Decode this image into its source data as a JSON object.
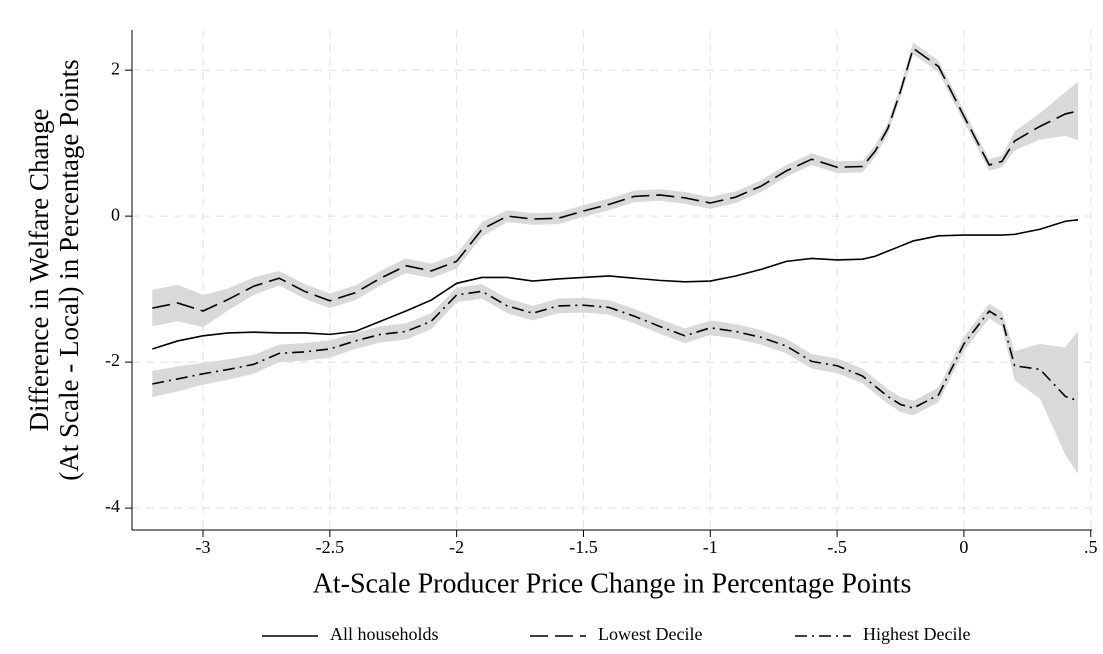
{
  "chart_data": {
    "type": "line",
    "ylabel": [
      "Difference in Welfare Change",
      "(At Scale - Local) in Percentage Points"
    ],
    "xlabel": "At-Scale Producer Price Change in Percentage Points",
    "x": [
      -3.2,
      -3.1,
      -3.0,
      -2.9,
      -2.8,
      -2.7,
      -2.6,
      -2.5,
      -2.4,
      -2.3,
      -2.2,
      -2.1,
      -2.0,
      -1.9,
      -1.8,
      -1.7,
      -1.6,
      -1.5,
      -1.4,
      -1.3,
      -1.2,
      -1.1,
      -1.0,
      -0.9,
      -0.8,
      -0.7,
      -0.6,
      -0.5,
      -0.4,
      -0.35,
      -0.3,
      -0.25,
      -0.2,
      -0.1,
      0,
      0.1,
      0.15,
      0.2,
      0.3,
      0.4,
      0.45
    ],
    "series": [
      {
        "name": "All households",
        "color": "#000000",
        "linestyle": "solid",
        "values": [
          -1.82,
          -1.71,
          -1.64,
          -1.6,
          -1.59,
          -1.6,
          -1.6,
          -1.62,
          -1.58,
          -1.44,
          -1.3,
          -1.15,
          -0.92,
          -0.84,
          -0.84,
          -0.89,
          -0.86,
          -0.84,
          -0.82,
          -0.85,
          -0.88,
          -0.9,
          -0.89,
          -0.82,
          -0.73,
          -0.62,
          -0.58,
          -0.6,
          -0.59,
          -0.55,
          -0.48,
          -0.41,
          -0.34,
          -0.27,
          -0.26,
          -0.26,
          -0.26,
          -0.25,
          -0.18,
          -0.07,
          -0.05
        ]
      },
      {
        "name": "Lowest Decile",
        "color": "#000000",
        "linestyle": "longdash",
        "values": [
          -1.26,
          -1.19,
          -1.3,
          -1.14,
          -0.96,
          -0.85,
          -1.03,
          -1.16,
          -1.05,
          -0.85,
          -0.68,
          -0.75,
          -0.62,
          -0.18,
          0.0,
          -0.04,
          -0.03,
          0.07,
          0.16,
          0.27,
          0.29,
          0.25,
          0.18,
          0.26,
          0.41,
          0.62,
          0.78,
          0.67,
          0.68,
          0.89,
          1.2,
          1.71,
          2.3,
          2.05,
          1.37,
          0.7,
          0.75,
          1.03,
          1.23,
          1.4,
          1.44
        ],
        "ci_lower": [
          -1.51,
          -1.44,
          -1.52,
          -1.29,
          -1.08,
          -0.95,
          -1.13,
          -1.26,
          -1.15,
          -0.95,
          -0.78,
          -0.85,
          -0.72,
          -0.28,
          -0.08,
          -0.12,
          -0.11,
          -0.01,
          0.08,
          0.19,
          0.21,
          0.17,
          0.1,
          0.18,
          0.33,
          0.54,
          0.7,
          0.59,
          0.6,
          0.81,
          1.12,
          1.63,
          2.22,
          1.97,
          1.29,
          0.62,
          0.67,
          0.9,
          1.05,
          1.1,
          1.04
        ],
        "ci_upper": [
          -1.01,
          -0.94,
          -1.08,
          -0.99,
          -0.84,
          -0.75,
          -0.93,
          -1.06,
          -0.95,
          -0.75,
          -0.58,
          -0.65,
          -0.52,
          -0.08,
          0.08,
          0.04,
          0.05,
          0.15,
          0.24,
          0.35,
          0.37,
          0.33,
          0.26,
          0.34,
          0.49,
          0.7,
          0.86,
          0.75,
          0.76,
          0.97,
          1.28,
          1.79,
          2.38,
          2.13,
          1.45,
          0.78,
          0.83,
          1.16,
          1.41,
          1.7,
          1.84
        ]
      },
      {
        "name": "Highest Decile",
        "color": "#000000",
        "linestyle": "dashdot",
        "values": [
          -2.3,
          -2.23,
          -2.16,
          -2.1,
          -2.03,
          -1.88,
          -1.86,
          -1.82,
          -1.71,
          -1.62,
          -1.58,
          -1.44,
          -1.08,
          -1.03,
          -1.23,
          -1.33,
          -1.23,
          -1.22,
          -1.25,
          -1.37,
          -1.51,
          -1.64,
          -1.53,
          -1.58,
          -1.66,
          -1.78,
          -1.99,
          -2.05,
          -2.19,
          -2.33,
          -2.47,
          -2.58,
          -2.63,
          -2.45,
          -1.75,
          -1.3,
          -1.41,
          -2.05,
          -2.1,
          -2.47,
          -2.53
        ],
        "ci_lower": [
          -2.48,
          -2.4,
          -2.31,
          -2.24,
          -2.16,
          -2.0,
          -1.98,
          -1.94,
          -1.82,
          -1.73,
          -1.69,
          -1.55,
          -1.18,
          -1.13,
          -1.33,
          -1.43,
          -1.33,
          -1.32,
          -1.35,
          -1.47,
          -1.61,
          -1.74,
          -1.63,
          -1.68,
          -1.76,
          -1.88,
          -2.09,
          -2.15,
          -2.29,
          -2.43,
          -2.57,
          -2.68,
          -2.73,
          -2.55,
          -1.85,
          -1.4,
          -1.51,
          -2.25,
          -2.5,
          -3.27,
          -3.53
        ],
        "ci_upper": [
          -2.12,
          -2.06,
          -2.01,
          -1.96,
          -1.9,
          -1.76,
          -1.74,
          -1.7,
          -1.6,
          -1.51,
          -1.47,
          -1.33,
          -0.98,
          -0.93,
          -1.13,
          -1.23,
          -1.13,
          -1.12,
          -1.15,
          -1.27,
          -1.41,
          -1.54,
          -1.43,
          -1.48,
          -1.56,
          -1.68,
          -1.89,
          -1.95,
          -2.09,
          -2.23,
          -2.37,
          -2.48,
          -2.53,
          -2.35,
          -1.65,
          -1.2,
          -1.31,
          -1.85,
          -1.75,
          -1.8,
          -1.57
        ]
      }
    ],
    "band_color": "#d9d9d9",
    "xlim": [
      -3.28,
      0.505
    ],
    "xticks": [
      -3,
      -2.5,
      -2,
      -1.5,
      -1,
      {
        "value": -0.5,
        "label": "-.5"
      },
      0,
      {
        "value": 0.5,
        "label": ".5"
      }
    ],
    "ylim": [
      -4.3,
      2.55
    ],
    "yticks": [
      -4,
      -2,
      0,
      2
    ],
    "grid": true,
    "legend": "bottom"
  }
}
